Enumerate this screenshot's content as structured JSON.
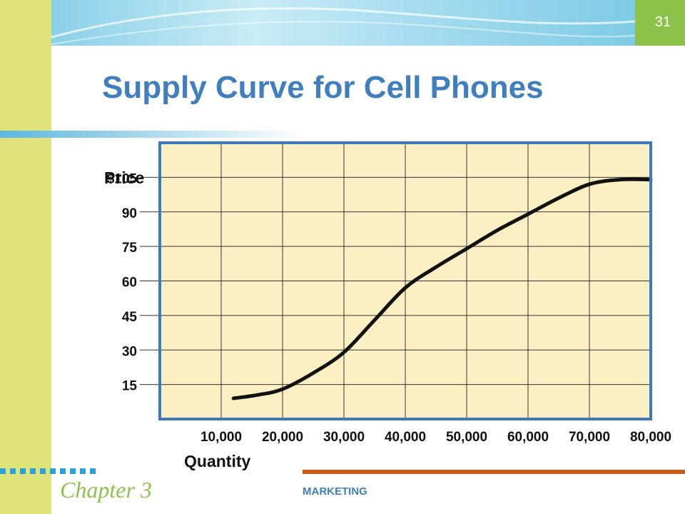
{
  "slide": {
    "page_number": "31",
    "title": "Supply Curve for Cell Phones",
    "chapter": "Chapter 3",
    "footer": "MARKETING"
  },
  "colors": {
    "sidebar": "#dfe27a",
    "title": "#3f7fbf",
    "plot_background": "#fdefc4",
    "plot_border": "#3f78b6",
    "curve": "#111111",
    "chapter": "#8dc24a",
    "footer_rule": "#cc5a1e",
    "page_box": "#8dc24a"
  },
  "chart_data": {
    "type": "line",
    "title": "",
    "ylabel": "Price",
    "xlabel": "Quantity",
    "y_ticks": [
      {
        "value": 105,
        "label": "$105"
      },
      {
        "value": 90,
        "label": "90"
      },
      {
        "value": 75,
        "label": "75"
      },
      {
        "value": 60,
        "label": "60"
      },
      {
        "value": 45,
        "label": "45"
      },
      {
        "value": 30,
        "label": "30"
      },
      {
        "value": 15,
        "label": "15"
      }
    ],
    "x_ticks": [
      {
        "value": 10000,
        "label": "10,000"
      },
      {
        "value": 20000,
        "label": "20,000"
      },
      {
        "value": 30000,
        "label": "30,000"
      },
      {
        "value": 40000,
        "label": "40,000"
      },
      {
        "value": 50000,
        "label": "50,000"
      },
      {
        "value": 60000,
        "label": "60,000"
      },
      {
        "value": 70000,
        "label": "70,000"
      },
      {
        "value": 80000,
        "label": "80,000"
      }
    ],
    "xlim": [
      0,
      80000
    ],
    "ylim": [
      0,
      120
    ],
    "grid": true,
    "series": [
      {
        "x": [
          12000,
          16000,
          20000,
          25000,
          30000,
          35000,
          40000,
          45000,
          50000,
          55000,
          60000,
          65000,
          70000,
          75000,
          80000
        ],
        "y": [
          9,
          10.5,
          13,
          20,
          29,
          43,
          57,
          66,
          74,
          82,
          89,
          96,
          102,
          104,
          104
        ]
      }
    ]
  }
}
